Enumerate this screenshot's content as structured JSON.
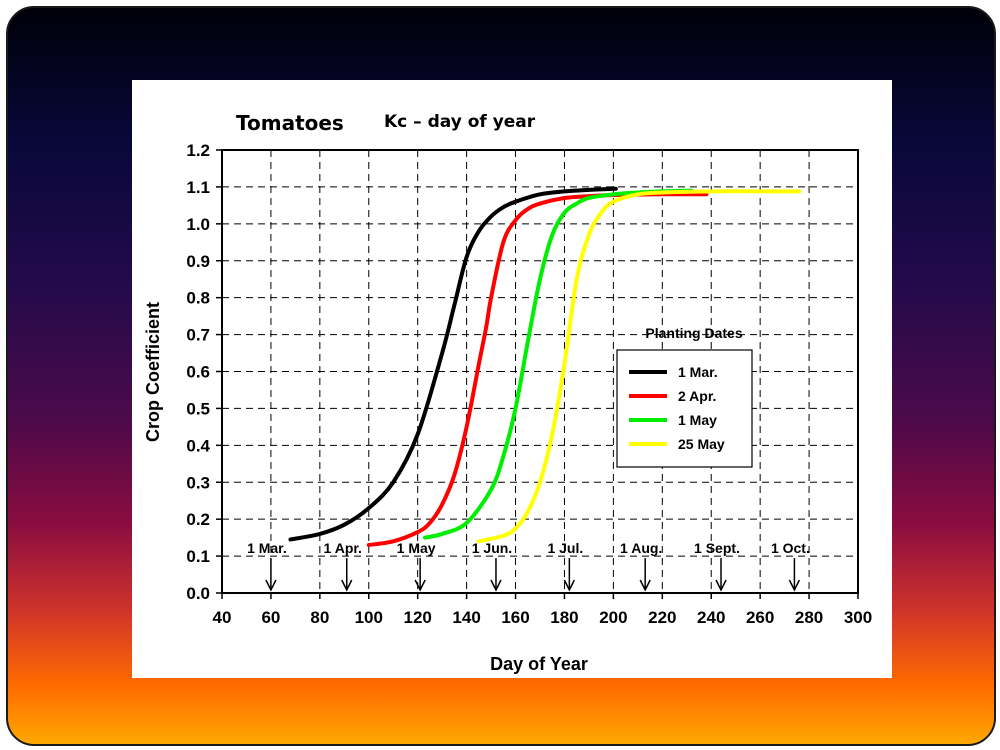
{
  "slide": {
    "background": "purple-orange gradient"
  },
  "chart_data": {
    "type": "line",
    "title": "Tomatoes",
    "subtitle": "Kc – day of year",
    "xlabel": "Day of Year",
    "ylabel": "Crop Coefficient",
    "xlim": [
      40,
      300
    ],
    "ylim": [
      0.0,
      1.2
    ],
    "x_ticks": [
      40,
      60,
      80,
      100,
      120,
      140,
      160,
      180,
      200,
      220,
      240,
      260,
      280,
      300
    ],
    "y_ticks": [
      "0.0",
      "0.1",
      "0.2",
      "0.3",
      "0.4",
      "0.5",
      "0.6",
      "0.7",
      "0.8",
      "0.9",
      "1.0",
      "1.1",
      "1.2"
    ],
    "grid": true,
    "grid_style": "dashed",
    "legend_title": "Planting Dates",
    "legend_position": "right",
    "series": [
      {
        "name": "1 Mar.",
        "color": "#000000",
        "x": [
          68,
          80,
          90,
          100,
          110,
          120,
          130,
          135,
          140,
          145,
          150,
          155,
          160,
          170,
          180,
          190,
          201
        ],
        "y": [
          0.145,
          0.16,
          0.185,
          0.23,
          0.3,
          0.43,
          0.65,
          0.78,
          0.91,
          0.98,
          1.02,
          1.045,
          1.06,
          1.08,
          1.088,
          1.092,
          1.095
        ]
      },
      {
        "name": "2 Apr.",
        "color": "#ff0000",
        "x": [
          100,
          110,
          120,
          125,
          130,
          135,
          140,
          145,
          148,
          150,
          155,
          160,
          165,
          170,
          180,
          190,
          200,
          220,
          238
        ],
        "y": [
          0.13,
          0.14,
          0.165,
          0.19,
          0.24,
          0.32,
          0.45,
          0.62,
          0.72,
          0.8,
          0.95,
          1.01,
          1.04,
          1.055,
          1.07,
          1.075,
          1.078,
          1.08,
          1.08
        ]
      },
      {
        "name": "1 May",
        "color": "#00ee00",
        "x": [
          123,
          130,
          140,
          150,
          155,
          160,
          165,
          170,
          175,
          180,
          185,
          190,
          200,
          210,
          220,
          232
        ],
        "y": [
          0.15,
          0.16,
          0.19,
          0.28,
          0.37,
          0.5,
          0.68,
          0.85,
          0.97,
          1.03,
          1.055,
          1.07,
          1.08,
          1.085,
          1.088,
          1.09
        ]
      },
      {
        "name": "25 May",
        "color": "#ffff00",
        "x": [
          145,
          155,
          160,
          165,
          170,
          175,
          180,
          185,
          190,
          195,
          200,
          210,
          220,
          240,
          260,
          276
        ],
        "y": [
          0.14,
          0.155,
          0.175,
          0.22,
          0.3,
          0.43,
          0.62,
          0.85,
          0.97,
          1.03,
          1.06,
          1.08,
          1.085,
          1.088,
          1.088,
          1.088
        ]
      }
    ],
    "annotations": [
      {
        "label": "1 Mar.",
        "x": 60
      },
      {
        "label": "1 Apr.",
        "x": 91
      },
      {
        "label": "1 May",
        "x": 121
      },
      {
        "label": "1 Jun.",
        "x": 152
      },
      {
        "label": "1 Jul.",
        "x": 182
      },
      {
        "label": "1 Aug.",
        "x": 213
      },
      {
        "label": "1 Sept.",
        "x": 244
      },
      {
        "label": "1 Oct.",
        "x": 274
      }
    ]
  }
}
